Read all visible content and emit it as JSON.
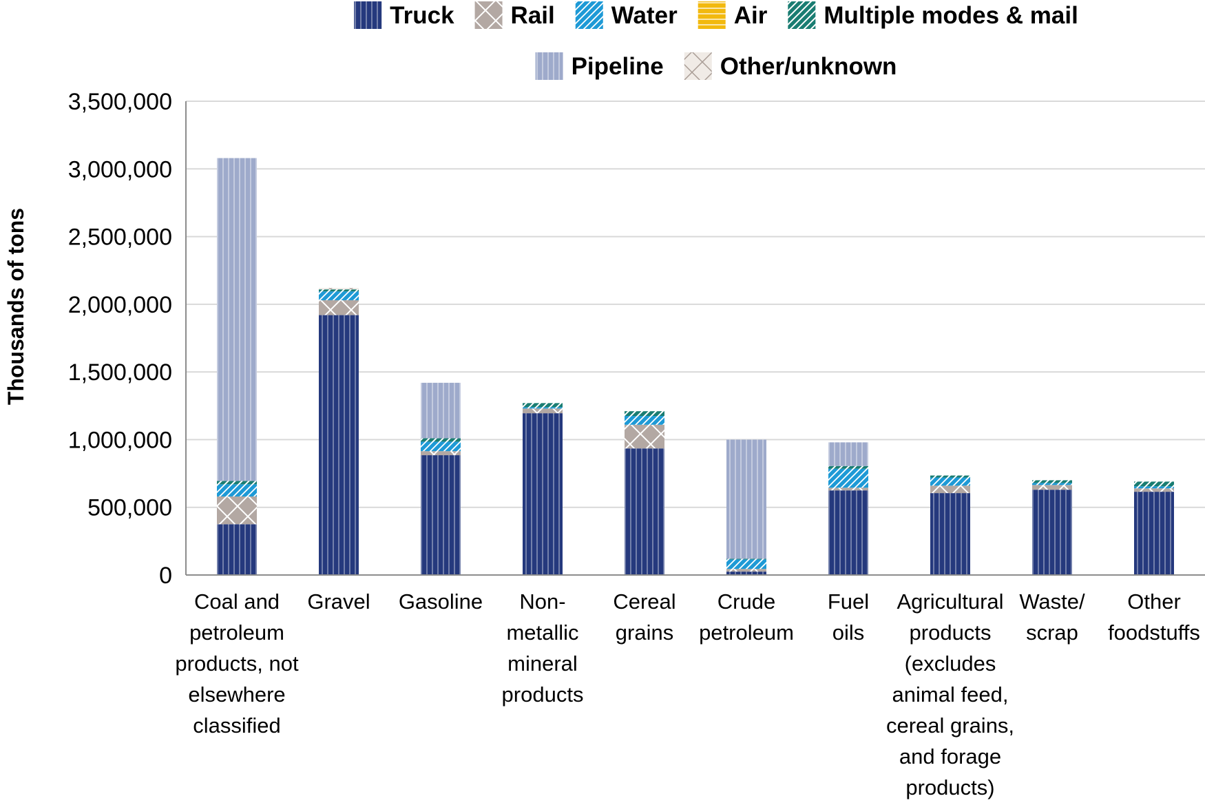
{
  "chart_data": {
    "type": "bar",
    "stacked": true,
    "title": "",
    "xlabel": "",
    "ylabel": "Thousands of tons",
    "ylim": [
      0,
      3500000
    ],
    "yticks": [
      "0",
      "500,000",
      "1,000,000",
      "1,500,000",
      "2,000,000",
      "2,500,000",
      "3,000,000",
      "3,500,000"
    ],
    "ytick_values": [
      0,
      500000,
      1000000,
      1500000,
      2000000,
      2500000,
      3000000,
      3500000
    ],
    "grid": true,
    "legend_position": "top",
    "categories": [
      [
        "Coal and",
        "petroleum",
        "products, not",
        "elsewhere",
        "classified"
      ],
      [
        "Gravel"
      ],
      [
        "Gasoline"
      ],
      [
        "Non-",
        "metallic",
        "mineral",
        "products"
      ],
      [
        "Cereal",
        "grains"
      ],
      [
        "Crude",
        "petroleum"
      ],
      [
        "Fuel",
        "oils"
      ],
      [
        "Agricultural",
        "products",
        "(excludes",
        "animal feed,",
        "cereal grains,",
        "and forage",
        "products)"
      ],
      [
        "Waste/",
        "scrap"
      ],
      [
        "Other",
        "foodstuffs"
      ]
    ],
    "series": [
      {
        "name": "Truck",
        "color": "#25397d",
        "pattern": "vertical-lines",
        "values": [
          375000,
          1920000,
          885000,
          1195000,
          935000,
          25000,
          625000,
          605000,
          630000,
          615000
        ]
      },
      {
        "name": "Rail",
        "color": "#b3a8a3",
        "pattern": "diagonal-cross",
        "values": [
          205000,
          110000,
          30000,
          35000,
          175000,
          20000,
          20000,
          55000,
          35000,
          25000
        ]
      },
      {
        "name": "Water",
        "color": "#1e9ad6",
        "pattern": "diagonal-stripes",
        "values": [
          90000,
          65000,
          70000,
          10000,
          65000,
          70000,
          140000,
          60000,
          15000,
          15000
        ]
      },
      {
        "name": "Air",
        "color": "#f2b90f",
        "pattern": "horizontal-lines",
        "values": [
          0,
          0,
          0,
          0,
          0,
          0,
          0,
          0,
          0,
          0
        ]
      },
      {
        "name": "Multiple modes & mail",
        "color": "#1a7d72",
        "pattern": "diagonal-stripes",
        "values": [
          25000,
          15000,
          25000,
          30000,
          35000,
          5000,
          20000,
          15000,
          20000,
          35000
        ]
      },
      {
        "name": "Pipeline",
        "color": "#9eaacb",
        "pattern": "vertical-lines",
        "values": [
          2385000,
          0,
          410000,
          0,
          0,
          880000,
          175000,
          0,
          0,
          0
        ]
      },
      {
        "name": "Other/unknown",
        "color": "#f0ebe6",
        "pattern": "diagonal-cross",
        "values": [
          0,
          10000,
          0,
          0,
          0,
          0,
          0,
          0,
          0,
          0
        ]
      }
    ]
  }
}
